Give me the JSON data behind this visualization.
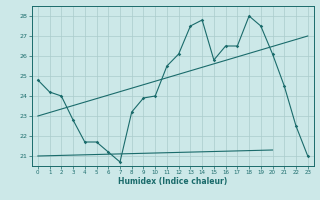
{
  "title": "",
  "xlabel": "Humidex (Indice chaleur)",
  "bg_color": "#cce8e8",
  "grid_color": "#aacccc",
  "line_color": "#1a6b6b",
  "xlim": [
    -0.5,
    23.5
  ],
  "ylim": [
    20.5,
    28.5
  ],
  "yticks": [
    21,
    22,
    23,
    24,
    25,
    26,
    27,
    28
  ],
  "xticks": [
    0,
    1,
    2,
    3,
    4,
    5,
    6,
    7,
    8,
    9,
    10,
    11,
    12,
    13,
    14,
    15,
    16,
    17,
    18,
    19,
    20,
    21,
    22,
    23
  ],
  "line1_x": [
    0,
    1,
    2,
    3,
    4,
    5,
    6,
    7,
    8,
    9,
    10,
    11,
    12,
    13,
    14,
    15,
    16,
    17,
    18,
    19,
    20,
    21,
    22,
    23
  ],
  "line1_y": [
    24.8,
    24.2,
    24.0,
    22.8,
    21.7,
    21.7,
    21.2,
    20.7,
    23.2,
    23.9,
    24.0,
    25.5,
    26.1,
    27.5,
    27.8,
    25.8,
    26.5,
    26.5,
    28.0,
    27.5,
    26.1,
    24.5,
    22.5,
    21.0
  ],
  "line2_x": [
    0,
    23
  ],
  "line2_y": [
    23.0,
    27.0
  ],
  "line3_x": [
    0,
    20
  ],
  "line3_y": [
    21.0,
    21.3
  ]
}
